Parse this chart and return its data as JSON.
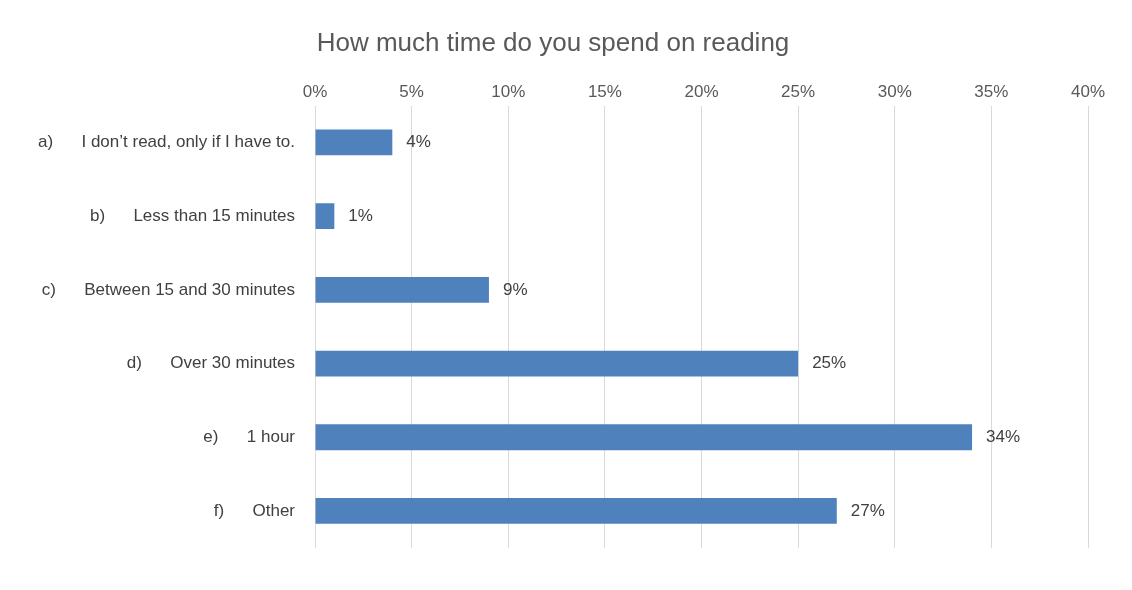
{
  "chart_data": {
    "type": "bar",
    "orientation": "horizontal",
    "title": "How much time do you spend on reading",
    "categories": [
      "a)      I don’t read, only if I have to.",
      "b)      Less than 15 minutes",
      "c)      Between 15 and 30 minutes",
      "d)      Over 30 minutes",
      "e)      1 hour",
      "f)      Other"
    ],
    "values": [
      4,
      1,
      9,
      25,
      34,
      27
    ],
    "value_labels": [
      "4%",
      "1%",
      "9%",
      "25%",
      "34%",
      "27%"
    ],
    "color": "#4f81bd",
    "xlim": [
      0,
      40
    ],
    "xticks": [
      {
        "value": 0,
        "label": "0%"
      },
      {
        "value": 5,
        "label": "5%"
      },
      {
        "value": 10,
        "label": "10%"
      },
      {
        "value": 15,
        "label": "15%"
      },
      {
        "value": 20,
        "label": "20%"
      },
      {
        "value": 25,
        "label": "25%"
      },
      {
        "value": 30,
        "label": "30%"
      },
      {
        "value": 35,
        "label": "35%"
      },
      {
        "value": 40,
        "label": "40%"
      }
    ],
    "grid": "x",
    "legend": false
  }
}
